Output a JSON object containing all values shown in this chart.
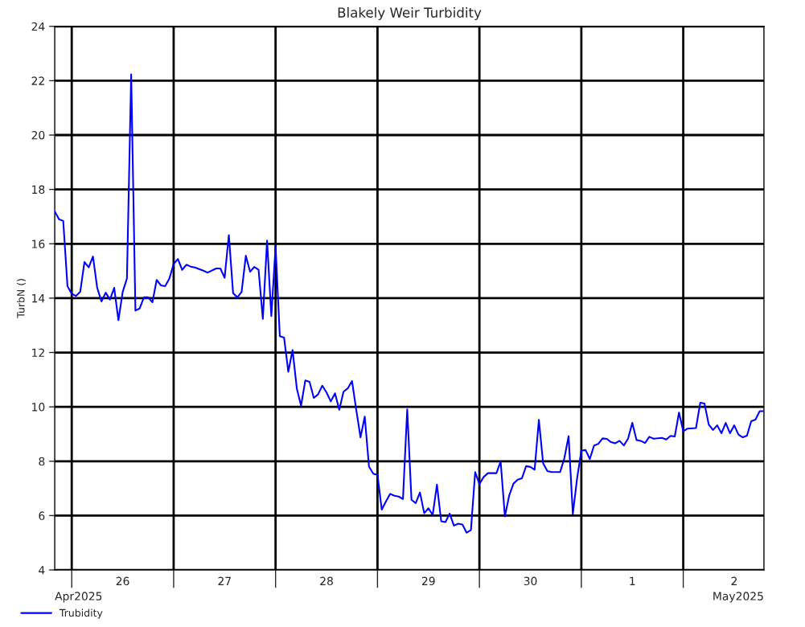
{
  "chart_data": {
    "type": "line",
    "title": "Blakely Weir Turbidity",
    "ylabel": "TurbN ()",
    "annotations": [
      "Apr2025",
      "May2025"
    ],
    "series": [
      {
        "name": "Trubidity",
        "color": "#0000ff",
        "x": [
          "2025-04-25T20:00",
          "2025-04-25T21:00",
          "2025-04-25T22:00",
          "2025-04-25T23:00",
          "2025-04-26T00:00",
          "2025-04-26T01:00",
          "2025-04-26T02:00",
          "2025-04-26T03:00",
          "2025-04-26T04:00",
          "2025-04-26T05:00",
          "2025-04-26T06:00",
          "2025-04-26T07:00",
          "2025-04-26T08:00",
          "2025-04-26T09:00",
          "2025-04-26T10:00",
          "2025-04-26T11:00",
          "2025-04-26T12:00",
          "2025-04-26T13:00",
          "2025-04-26T14:00",
          "2025-04-26T15:00",
          "2025-04-26T16:00",
          "2025-04-26T17:00",
          "2025-04-26T18:00",
          "2025-04-26T19:00",
          "2025-04-26T20:00",
          "2025-04-26T21:00",
          "2025-04-26T22:00",
          "2025-04-26T23:00",
          "2025-04-27T00:00",
          "2025-04-27T01:00",
          "2025-04-27T02:00",
          "2025-04-27T03:00",
          "2025-04-27T04:00",
          "2025-04-27T05:00",
          "2025-04-27T07:00",
          "2025-04-27T08:00",
          "2025-04-27T10:00",
          "2025-04-27T11:00",
          "2025-04-27T12:00",
          "2025-04-27T13:00",
          "2025-04-27T14:00",
          "2025-04-27T15:00",
          "2025-04-27T16:00",
          "2025-04-27T17:00",
          "2025-04-27T18:00",
          "2025-04-27T19:00",
          "2025-04-27T20:00",
          "2025-04-27T21:00",
          "2025-04-27T22:00",
          "2025-04-27T23:00",
          "2025-04-28T00:00",
          "2025-04-28T01:00",
          "2025-04-28T02:00",
          "2025-04-28T03:00",
          "2025-04-28T04:00",
          "2025-04-28T05:00",
          "2025-04-28T06:00",
          "2025-04-28T07:00",
          "2025-04-28T08:00",
          "2025-04-28T09:00",
          "2025-04-28T10:00",
          "2025-04-28T11:00",
          "2025-04-28T12:00",
          "2025-04-28T13:00",
          "2025-04-28T14:00",
          "2025-04-28T15:00",
          "2025-04-28T16:00",
          "2025-04-28T17:00",
          "2025-04-28T18:00",
          "2025-04-28T19:00",
          "2025-04-28T20:00",
          "2025-04-28T21:00",
          "2025-04-28T22:00",
          "2025-04-28T23:00",
          "2025-04-29T00:00",
          "2025-04-29T01:00",
          "2025-04-29T02:00",
          "2025-04-29T03:00",
          "2025-04-29T04:00",
          "2025-04-29T05:00",
          "2025-04-29T06:00",
          "2025-04-29T07:00",
          "2025-04-29T08:00",
          "2025-04-29T09:00",
          "2025-04-29T10:00",
          "2025-04-29T11:00",
          "2025-04-29T12:00",
          "2025-04-29T13:00",
          "2025-04-29T14:00",
          "2025-04-29T15:00",
          "2025-04-29T16:00",
          "2025-04-29T17:00",
          "2025-04-29T18:00",
          "2025-04-29T19:00",
          "2025-04-29T20:00",
          "2025-04-29T21:00",
          "2025-04-29T22:00",
          "2025-04-29T23:00",
          "2025-04-30T00:00",
          "2025-04-30T01:00",
          "2025-04-30T02:00",
          "2025-04-30T04:00",
          "2025-04-30T05:00",
          "2025-04-30T06:00",
          "2025-04-30T07:00",
          "2025-04-30T08:00",
          "2025-04-30T09:00",
          "2025-04-30T10:00",
          "2025-04-30T11:00",
          "2025-04-30T12:00",
          "2025-04-30T13:00",
          "2025-04-30T14:00",
          "2025-04-30T15:00",
          "2025-04-30T16:00",
          "2025-04-30T17:00",
          "2025-04-30T19:00",
          "2025-04-30T20:00",
          "2025-04-30T21:00",
          "2025-04-30T22:00",
          "2025-04-30T23:00",
          "2025-05-01T00:00",
          "2025-05-01T01:00",
          "2025-05-01T02:00",
          "2025-05-01T03:00",
          "2025-05-01T04:00",
          "2025-05-01T05:00",
          "2025-05-01T06:00",
          "2025-05-01T07:00",
          "2025-05-01T08:00",
          "2025-05-01T09:00",
          "2025-05-01T10:00",
          "2025-05-01T11:00",
          "2025-05-01T12:00",
          "2025-05-01T13:00",
          "2025-05-01T14:00",
          "2025-05-01T15:00",
          "2025-05-01T16:00",
          "2025-05-01T17:00",
          "2025-05-01T19:00",
          "2025-05-01T20:00",
          "2025-05-01T21:00",
          "2025-05-01T22:00",
          "2025-05-01T23:00",
          "2025-05-02T00:00",
          "2025-05-02T01:00",
          "2025-05-02T03:00",
          "2025-05-02T04:00",
          "2025-05-02T05:00",
          "2025-05-02T06:00",
          "2025-05-02T07:00",
          "2025-05-02T08:00",
          "2025-05-02T09:00",
          "2025-05-02T10:00",
          "2025-05-02T11:00",
          "2025-05-02T12:00",
          "2025-05-02T13:00",
          "2025-05-02T14:00",
          "2025-05-02T15:00",
          "2025-05-02T16:00",
          "2025-05-02T17:00",
          "2025-05-02T18:00",
          "2025-05-02T19:00"
        ],
        "values": [
          17.19,
          16.9,
          16.84,
          14.44,
          14.16,
          14.08,
          14.23,
          15.33,
          15.13,
          15.53,
          14.38,
          13.88,
          14.2,
          13.95,
          14.38,
          13.19,
          14.23,
          14.72,
          22.23,
          13.54,
          13.62,
          14.03,
          14.03,
          13.85,
          14.67,
          14.47,
          14.44,
          14.72,
          15.26,
          15.44,
          15.04,
          15.23,
          15.16,
          15.13,
          15.01,
          14.94,
          15.09,
          15.09,
          14.75,
          16.32,
          14.18,
          14.03,
          14.23,
          15.56,
          14.97,
          15.15,
          15.04,
          13.24,
          16.12,
          13.34,
          15.9,
          12.6,
          12.55,
          11.29,
          12.09,
          10.68,
          10.04,
          10.97,
          10.92,
          10.33,
          10.46,
          10.78,
          10.53,
          10.2,
          10.5,
          9.89,
          10.56,
          10.68,
          10.95,
          9.89,
          8.88,
          9.64,
          7.8,
          7.54,
          7.5,
          6.22,
          6.52,
          6.8,
          6.73,
          6.7,
          6.61,
          9.91,
          6.58,
          6.46,
          6.85,
          6.09,
          6.27,
          6.02,
          7.14,
          5.79,
          5.76,
          6.07,
          5.63,
          5.7,
          5.67,
          5.37,
          5.47,
          7.6,
          7.16,
          7.42,
          7.56,
          7.56,
          7.99,
          5.97,
          6.73,
          7.17,
          7.32,
          7.37,
          7.82,
          7.79,
          7.69,
          9.52,
          7.93,
          7.64,
          7.6,
          7.6,
          8.11,
          8.92,
          6.06,
          7.37,
          8.39,
          8.41,
          8.08,
          8.58,
          8.64,
          8.84,
          8.82,
          8.7,
          8.66,
          8.75,
          8.58,
          8.83,
          9.41,
          8.78,
          8.75,
          8.67,
          8.9,
          8.83,
          8.86,
          8.8,
          8.93,
          8.91,
          9.79,
          9.1,
          9.2,
          9.22,
          10.15,
          10.12,
          9.35,
          9.15,
          9.32,
          9.03,
          9.41,
          9.03,
          9.32,
          8.98,
          8.88,
          8.94,
          9.47,
          9.53,
          9.84,
          9.84
        ]
      }
    ],
    "xlim": [
      "2025-04-25T20:00",
      "2025-05-02T19:00"
    ],
    "xticks": [
      {
        "value": "2025-04-26T00:00",
        "label": null
      },
      {
        "value": "2025-04-26T12:00",
        "label": "26"
      },
      {
        "value": "2025-04-27T00:00",
        "label": null
      },
      {
        "value": "2025-04-27T12:00",
        "label": "27"
      },
      {
        "value": "2025-04-28T00:00",
        "label": null
      },
      {
        "value": "2025-04-28T12:00",
        "label": "28"
      },
      {
        "value": "2025-04-29T00:00",
        "label": null
      },
      {
        "value": "2025-04-29T12:00",
        "label": "29"
      },
      {
        "value": "2025-04-30T00:00",
        "label": null
      },
      {
        "value": "2025-04-30T12:00",
        "label": "30"
      },
      {
        "value": "2025-05-01T00:00",
        "label": null
      },
      {
        "value": "2025-05-01T12:00",
        "label": "1"
      },
      {
        "value": "2025-05-02T00:00",
        "label": null
      },
      {
        "value": "2025-05-02T12:00",
        "label": "2"
      }
    ],
    "ylim": [
      4,
      24
    ],
    "yticks": [
      4,
      6,
      8,
      10,
      12,
      14,
      16,
      18,
      20,
      22,
      24
    ],
    "grid": true,
    "legend": "bottom left",
    "marker": "none",
    "line_style": "solid"
  }
}
